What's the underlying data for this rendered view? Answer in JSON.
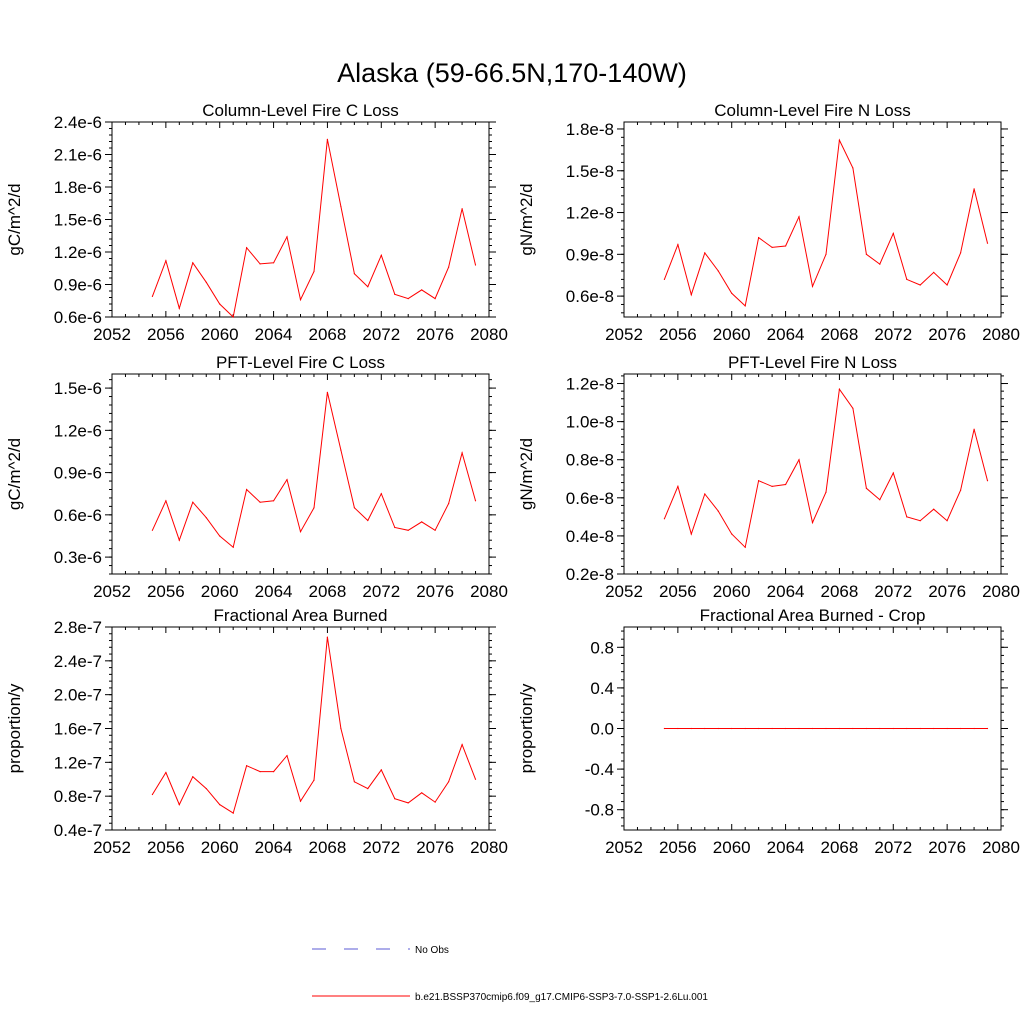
{
  "figure": {
    "title": "Alaska (59-66.5N,170-140W)",
    "legend": {
      "obs_label": "No Obs",
      "obs_color": "#5b5bd6",
      "model_label": "b.e21.BSSP370cmip6.f09_g17.CMIP6-SSP3-7.0-SSP1-2.6Lu.001",
      "model_color": "#ff0000"
    }
  },
  "chart_data": [
    {
      "type": "line",
      "title": "Column-Level Fire C Loss",
      "ylabel": "gC/m^2/d",
      "xlim": [
        2052,
        2080
      ],
      "ylim": [
        0.6,
        2.4
      ],
      "xticks": [
        2052,
        2056,
        2060,
        2064,
        2068,
        2072,
        2076,
        2080
      ],
      "yticks": [
        0.6,
        0.9,
        1.2,
        1.5,
        1.8,
        2.1,
        2.4
      ],
      "ytick_labels": [
        "0.6e-6",
        "0.9e-6",
        "1.2e-6",
        "1.5e-6",
        "1.8e-6",
        "2.1e-6",
        "2.4e-6"
      ],
      "x": [
        2055,
        2056,
        2057,
        2058,
        2059,
        2060,
        2061,
        2062,
        2063,
        2064,
        2065,
        2066,
        2067,
        2068,
        2069,
        2070,
        2071,
        2072,
        2073,
        2074,
        2075,
        2076,
        2077,
        2078,
        2079
      ],
      "series": [
        {
          "name": "b.e21.BSSP370cmip6.f09_g17.CMIP6-SSP3-7.0-SSP1-2.6Lu.001",
          "values": [
            0.79,
            1.12,
            0.68,
            1.1,
            0.92,
            0.72,
            0.6,
            1.24,
            1.09,
            1.1,
            1.34,
            0.76,
            1.02,
            2.24,
            1.62,
            1.0,
            0.88,
            1.17,
            0.81,
            0.77,
            0.85,
            0.77,
            1.06,
            1.6,
            1.08
          ]
        }
      ]
    },
    {
      "type": "line",
      "title": "Column-Level Fire N Loss",
      "ylabel": "gN/m^2/d",
      "xlim": [
        2052,
        2080
      ],
      "ylim": [
        0.45,
        1.85
      ],
      "xticks": [
        2052,
        2056,
        2060,
        2064,
        2068,
        2072,
        2076,
        2080
      ],
      "yticks": [
        0.6,
        0.9,
        1.2,
        1.5,
        1.8
      ],
      "ytick_labels": [
        "0.6e-8",
        "0.9e-8",
        "1.2e-8",
        "1.5e-8",
        "1.8e-8"
      ],
      "x": [
        2055,
        2056,
        2057,
        2058,
        2059,
        2060,
        2061,
        2062,
        2063,
        2064,
        2065,
        2066,
        2067,
        2068,
        2069,
        2070,
        2071,
        2072,
        2073,
        2074,
        2075,
        2076,
        2077,
        2078,
        2079
      ],
      "series": [
        {
          "name": "b.e21.BSSP370cmip6.f09_g17.CMIP6-SSP3-7.0-SSP1-2.6Lu.001",
          "values": [
            0.72,
            0.97,
            0.61,
            0.91,
            0.78,
            0.62,
            0.53,
            1.02,
            0.95,
            0.96,
            1.17,
            0.67,
            0.9,
            1.72,
            1.52,
            0.9,
            0.83,
            1.05,
            0.72,
            0.68,
            0.77,
            0.68,
            0.91,
            1.37,
            0.98
          ]
        }
      ]
    },
    {
      "type": "line",
      "title": "PFT-Level Fire C Loss",
      "ylabel": "gC/m^2/d",
      "xlim": [
        2052,
        2080
      ],
      "ylim": [
        0.18,
        1.6
      ],
      "xticks": [
        2052,
        2056,
        2060,
        2064,
        2068,
        2072,
        2076,
        2080
      ],
      "yticks": [
        0.3,
        0.6,
        0.9,
        1.2,
        1.5
      ],
      "ytick_labels": [
        "0.3e-6",
        "0.6e-6",
        "0.9e-6",
        "1.2e-6",
        "1.5e-6"
      ],
      "x": [
        2055,
        2056,
        2057,
        2058,
        2059,
        2060,
        2061,
        2062,
        2063,
        2064,
        2065,
        2066,
        2067,
        2068,
        2069,
        2070,
        2071,
        2072,
        2073,
        2074,
        2075,
        2076,
        2077,
        2078,
        2079
      ],
      "series": [
        {
          "name": "b.e21.BSSP370cmip6.f09_g17.CMIP6-SSP3-7.0-SSP1-2.6Lu.001",
          "values": [
            0.49,
            0.7,
            0.42,
            0.69,
            0.58,
            0.45,
            0.37,
            0.78,
            0.69,
            0.7,
            0.85,
            0.48,
            0.65,
            1.47,
            1.06,
            0.65,
            0.56,
            0.75,
            0.51,
            0.49,
            0.55,
            0.49,
            0.68,
            1.04,
            0.7
          ]
        }
      ]
    },
    {
      "type": "line",
      "title": "PFT-Level Fire N Loss",
      "ylabel": "gN/m^2/d",
      "xlim": [
        2052,
        2080
      ],
      "ylim": [
        0.2,
        1.25
      ],
      "xticks": [
        2052,
        2056,
        2060,
        2064,
        2068,
        2072,
        2076,
        2080
      ],
      "yticks": [
        0.2,
        0.4,
        0.6,
        0.8,
        1.0,
        1.2
      ],
      "ytick_labels": [
        "0.2e-8",
        "0.4e-8",
        "0.6e-8",
        "0.8e-8",
        "1.0e-8",
        "1.2e-8"
      ],
      "x": [
        2055,
        2056,
        2057,
        2058,
        2059,
        2060,
        2061,
        2062,
        2063,
        2064,
        2065,
        2066,
        2067,
        2068,
        2069,
        2070,
        2071,
        2072,
        2073,
        2074,
        2075,
        2076,
        2077,
        2078,
        2079
      ],
      "series": [
        {
          "name": "b.e21.BSSP370cmip6.f09_g17.CMIP6-SSP3-7.0-SSP1-2.6Lu.001",
          "values": [
            0.49,
            0.66,
            0.41,
            0.62,
            0.53,
            0.41,
            0.34,
            0.69,
            0.66,
            0.67,
            0.8,
            0.47,
            0.63,
            1.17,
            1.07,
            0.65,
            0.59,
            0.73,
            0.5,
            0.48,
            0.54,
            0.48,
            0.64,
            0.96,
            0.69
          ]
        }
      ]
    },
    {
      "type": "line",
      "title": "Fractional Area Burned",
      "ylabel": "proportion/y",
      "xlim": [
        2052,
        2080
      ],
      "ylim": [
        0.4,
        2.8
      ],
      "xticks": [
        2052,
        2056,
        2060,
        2064,
        2068,
        2072,
        2076,
        2080
      ],
      "yticks": [
        0.4,
        0.8,
        1.2,
        1.6,
        2.0,
        2.4,
        2.8
      ],
      "ytick_labels": [
        "0.4e-7",
        "0.8e-7",
        "1.2e-7",
        "1.6e-7",
        "2.0e-7",
        "2.4e-7",
        "2.8e-7"
      ],
      "x": [
        2055,
        2056,
        2057,
        2058,
        2059,
        2060,
        2061,
        2062,
        2063,
        2064,
        2065,
        2066,
        2067,
        2068,
        2069,
        2070,
        2071,
        2072,
        2073,
        2074,
        2075,
        2076,
        2077,
        2078,
        2079
      ],
      "series": [
        {
          "name": "b.e21.BSSP370cmip6.f09_g17.CMIP6-SSP3-7.0-SSP1-2.6Lu.001",
          "values": [
            0.82,
            1.08,
            0.7,
            1.03,
            0.89,
            0.7,
            0.6,
            1.16,
            1.09,
            1.09,
            1.28,
            0.74,
            0.99,
            2.68,
            1.6,
            0.97,
            0.89,
            1.11,
            0.77,
            0.72,
            0.84,
            0.73,
            0.97,
            1.41,
            1.0
          ]
        }
      ]
    },
    {
      "type": "line",
      "title": "Fractional Area Burned - Crop",
      "ylabel": "proportion/y",
      "xlim": [
        2052,
        2080
      ],
      "ylim": [
        -1.0,
        1.0
      ],
      "xticks": [
        2052,
        2056,
        2060,
        2064,
        2068,
        2072,
        2076,
        2080
      ],
      "yticks": [
        -0.8,
        -0.4,
        0.0,
        0.4,
        0.8
      ],
      "ytick_labels": [
        "-0.8",
        "-0.4",
        "0.0",
        "0.4",
        "0.8"
      ],
      "x": [
        2055,
        2056,
        2057,
        2058,
        2059,
        2060,
        2061,
        2062,
        2063,
        2064,
        2065,
        2066,
        2067,
        2068,
        2069,
        2070,
        2071,
        2072,
        2073,
        2074,
        2075,
        2076,
        2077,
        2078,
        2079
      ],
      "series": [
        {
          "name": "b.e21.BSSP370cmip6.f09_g17.CMIP6-SSP3-7.0-SSP1-2.6Lu.001",
          "values": [
            0,
            0,
            0,
            0,
            0,
            0,
            0,
            0,
            0,
            0,
            0,
            0,
            0,
            0,
            0,
            0,
            0,
            0,
            0,
            0,
            0,
            0,
            0,
            0,
            0
          ]
        }
      ]
    }
  ]
}
